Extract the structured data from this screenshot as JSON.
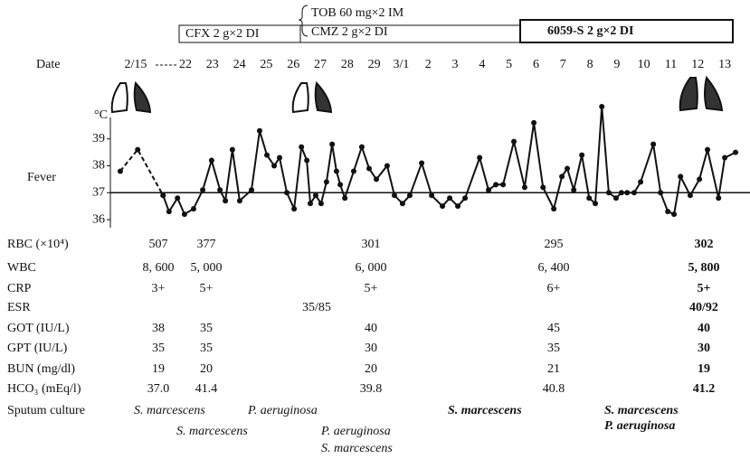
{
  "chart_data": {
    "type": "line",
    "xlabel": "Date",
    "ylabel": "Fever",
    "yunit": "°C",
    "xlim": [
      -0.5,
      21.5
    ],
    "xticks": [
      {
        "value": 0,
        "label": "2/15"
      },
      {
        "value": 1,
        "label": "22"
      },
      {
        "value": 2,
        "label": "23"
      },
      {
        "value": 3,
        "label": "24"
      },
      {
        "value": 4,
        "label": "25"
      },
      {
        "value": 5,
        "label": "26"
      },
      {
        "value": 6,
        "label": "27"
      },
      {
        "value": 7,
        "label": "28"
      },
      {
        "value": 8,
        "label": "29"
      },
      {
        "value": 9,
        "label": "3/1"
      },
      {
        "value": 10,
        "label": "2"
      },
      {
        "value": 11,
        "label": "3"
      },
      {
        "value": 12,
        "label": "4"
      },
      {
        "value": 13,
        "label": "5"
      },
      {
        "value": 14,
        "label": "6"
      },
      {
        "value": 15,
        "label": "7"
      },
      {
        "value": 16,
        "label": "8"
      },
      {
        "value": 17,
        "label": "9"
      },
      {
        "value": 18,
        "label": "10"
      },
      {
        "value": 19,
        "label": "11"
      },
      {
        "value": 20,
        "label": "12"
      },
      {
        "value": 21,
        "label": "13"
      }
    ],
    "ylim": [
      35.7,
      40.4
    ],
    "yticks": [
      36,
      37,
      38,
      39
    ],
    "reference_line": 37,
    "series": [
      {
        "line_style": "dashed",
        "color": "#111",
        "x": [
          -0.31,
          0.04,
          0.55
        ],
        "values": [
          37.8,
          38.6,
          36.9
        ]
      },
      {
        "line_style": "solid",
        "color": "#111",
        "x": [
          0.55,
          0.67,
          0.84,
          0.98,
          1.3,
          1.64,
          1.97,
          2.28,
          2.48,
          2.74,
          3.01,
          3.45,
          3.75,
          4.02,
          4.29,
          4.49,
          4.76,
          5.03,
          5.3,
          5.5,
          5.63,
          5.83,
          6.03,
          6.23,
          6.44,
          6.6,
          6.74,
          6.91,
          7.24,
          7.54,
          7.81,
          8.08,
          8.48,
          8.75,
          9.05,
          9.32,
          9.76,
          10.13,
          10.53,
          10.8,
          11.1,
          11.37,
          11.91,
          12.24,
          12.51,
          12.78,
          13.18,
          13.58,
          13.92,
          14.26,
          14.66,
          14.96,
          15.16,
          15.4,
          15.7,
          15.97,
          16.2,
          16.44,
          16.7,
          16.97,
          17.17,
          17.38,
          17.64,
          17.88,
          18.35,
          18.62,
          18.89,
          19.12,
          19.36,
          19.72,
          20.06,
          20.36,
          20.77,
          21.0,
          21.4
        ],
        "values": [
          36.9,
          36.3,
          36.8,
          36.2,
          36.4,
          37.1,
          38.2,
          37.1,
          36.7,
          38.6,
          36.7,
          37.1,
          39.3,
          38.4,
          38.0,
          38.3,
          37.0,
          36.4,
          38.7,
          38.2,
          36.6,
          36.9,
          36.6,
          37.4,
          38.8,
          37.8,
          37.3,
          36.8,
          37.8,
          38.7,
          37.9,
          37.5,
          38.0,
          36.9,
          36.6,
          36.9,
          38.1,
          36.9,
          36.5,
          36.8,
          36.5,
          36.8,
          38.3,
          37.1,
          37.3,
          37.3,
          38.9,
          37.2,
          39.6,
          37.2,
          36.4,
          37.6,
          37.9,
          37.1,
          38.4,
          36.8,
          36.6,
          40.2,
          37.0,
          36.8,
          37.0,
          37.0,
          37.0,
          37.4,
          38.8,
          37.0,
          36.3,
          36.2,
          37.6,
          36.9,
          37.5,
          38.6,
          36.8,
          38.3,
          38.5
        ]
      }
    ]
  },
  "regimens": [
    "CFX 2 g×2 DI",
    "TOB 60 mg×2 IM",
    "CMZ 2 g×2 DI",
    "6059-S 2 g×2 DI"
  ],
  "lab_table": {
    "rows": [
      {
        "label": "RBC (×10⁴)",
        "cells": [
          "507",
          "377",
          null,
          "301",
          "295",
          "302"
        ]
      },
      {
        "label": "WBC",
        "cells": [
          "8, 600",
          "5, 000",
          null,
          "6, 000",
          "6, 400",
          "5, 800"
        ]
      },
      {
        "label": "CRP",
        "cells": [
          "3+",
          "5+",
          null,
          "5+",
          "6+",
          "5+"
        ]
      },
      {
        "label": "ESR",
        "cells": [
          null,
          null,
          "35/85",
          null,
          null,
          "40/92"
        ]
      },
      {
        "label": "GOT (IU/L)",
        "cells": [
          "38",
          "35",
          null,
          "40",
          "45",
          "40"
        ]
      },
      {
        "label": "GPT (IU/L)",
        "cells": [
          "35",
          "35",
          null,
          "30",
          "35",
          "30"
        ]
      },
      {
        "label": "BUN (mg/dl)",
        "cells": [
          "19",
          "20",
          null,
          "20",
          "21",
          "19"
        ]
      },
      {
        "label": "HCO₃ (mEq/l)",
        "cells": [
          "37.0",
          "41.4",
          null,
          "39.8",
          "40.8",
          "41.2"
        ]
      }
    ]
  },
  "sputum_culture": {
    "label": "Sputum culture",
    "entries": [
      "S. marcescens",
      "P. aeruginosa",
      "S. marcescens",
      "P. aeruginosa",
      "S. marcescens",
      "S. marcescens",
      "S. marcescens",
      "P. aeruginosa"
    ]
  }
}
